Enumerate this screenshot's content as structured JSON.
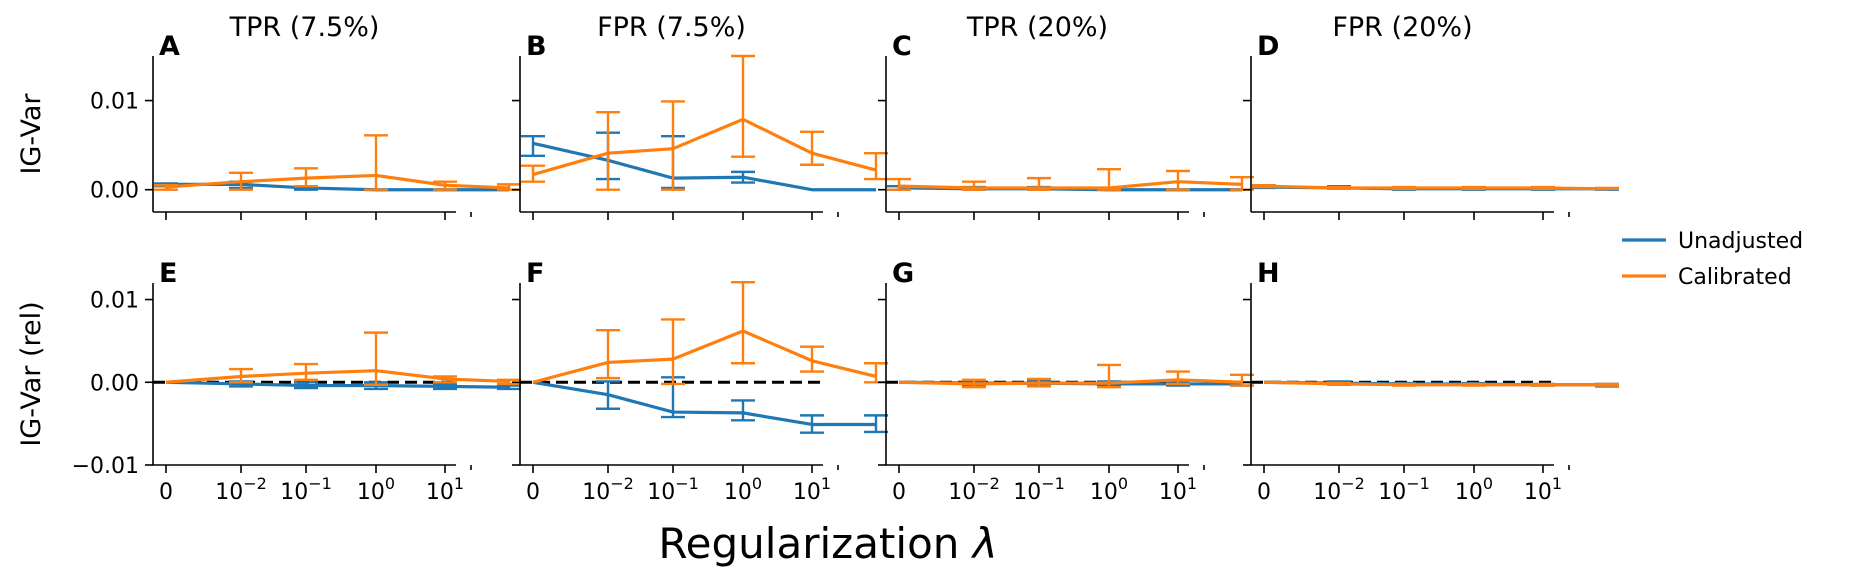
{
  "figure": {
    "xlabel": "Regularization λ",
    "legend": {
      "placement": "right",
      "entries": [
        {
          "name": "Unadjusted",
          "color": "#1f77b4"
        },
        {
          "name": "Calibrated",
          "color": "#ff7f0e"
        }
      ]
    },
    "x_ticks": [
      "0",
      "10^-2",
      "10^-1",
      "10^0",
      "10^1"
    ]
  },
  "chart_data": [
    {
      "type": "line",
      "letter": "A",
      "title": "TPR (7.5%)",
      "ylabel": "IG-Var",
      "ylim": [
        -0.0025,
        0.015
      ],
      "yticks": [
        "0.00",
        "0.01"
      ],
      "ytick_values": [
        0.0,
        0.01
      ],
      "zero_line": false,
      "x": [
        0,
        1,
        2,
        3,
        4,
        5
      ],
      "series": [
        {
          "name": "Unadjusted",
          "values": [
            0.0006,
            0.0006,
            0.0002,
            0.0,
            0.0,
            0.0
          ],
          "err_low": [
            0.0004,
            0.0002,
            0.0,
            0.0,
            0.0,
            0.0
          ],
          "err_high": [
            0.0007,
            0.0009,
            0.0004,
            0.0,
            0.0,
            0.0
          ]
        },
        {
          "name": "Calibrated",
          "values": [
            0.0003,
            0.0009,
            0.0013,
            0.0016,
            0.0005,
            0.0002
          ],
          "err_low": [
            0.0,
            0.0,
            0.0004,
            0.0,
            0.0,
            0.0
          ],
          "err_high": [
            0.0005,
            0.0019,
            0.0024,
            0.0061,
            0.0009,
            0.0006
          ]
        }
      ]
    },
    {
      "type": "line",
      "letter": "B",
      "title": "FPR (7.5%)",
      "ylabel": "",
      "ylim": [
        -0.0025,
        0.015
      ],
      "yticks": [
        "",
        ""
      ],
      "ytick_values": [
        0.0,
        0.01
      ],
      "zero_line": false,
      "x": [
        0,
        1,
        2,
        3,
        4,
        5
      ],
      "series": [
        {
          "name": "Unadjusted",
          "values": [
            0.0052,
            0.0033,
            0.0013,
            0.0014,
            0.0,
            0.0
          ],
          "err_low": [
            0.0038,
            0.0012,
            0.0002,
            0.0008,
            0.0,
            0.0
          ],
          "err_high": [
            0.006,
            0.0064,
            0.006,
            0.002,
            0.0,
            0.0
          ]
        },
        {
          "name": "Calibrated",
          "values": [
            0.0017,
            0.0041,
            0.0046,
            0.0079,
            0.0041,
            0.0022
          ],
          "err_low": [
            0.0009,
            0.0,
            0.0,
            0.0037,
            0.0028,
            0.0012
          ],
          "err_high": [
            0.0027,
            0.0087,
            0.0099,
            0.015,
            0.0065,
            0.0041
          ]
        }
      ]
    },
    {
      "type": "line",
      "letter": "C",
      "title": "TPR (20%)",
      "ylabel": "",
      "ylim": [
        -0.0025,
        0.015
      ],
      "yticks": [
        "",
        ""
      ],
      "ytick_values": [
        0.0,
        0.01
      ],
      "zero_line": false,
      "x": [
        0,
        1,
        2,
        3,
        4,
        5
      ],
      "series": [
        {
          "name": "Unadjusted",
          "values": [
            0.0002,
            0.0001,
            0.0001,
            0.0,
            0.0,
            0.0
          ],
          "err_low": [
            0.0,
            0.0,
            0.0,
            0.0,
            0.0,
            0.0
          ],
          "err_high": [
            0.0004,
            0.0003,
            0.0003,
            0.0,
            0.0,
            0.0
          ]
        },
        {
          "name": "Calibrated",
          "values": [
            0.0004,
            0.0002,
            0.0002,
            0.0002,
            0.0009,
            0.0006
          ],
          "err_low": [
            0.0,
            0.0,
            0.0,
            0.0,
            0.0,
            0.0
          ],
          "err_high": [
            0.0012,
            0.0009,
            0.0013,
            0.0023,
            0.0021,
            0.0014
          ]
        }
      ]
    },
    {
      "type": "line",
      "letter": "D",
      "title": "FPR (20%)",
      "ylabel": "",
      "ylim": [
        -0.0025,
        0.015
      ],
      "yticks": [
        "",
        ""
      ],
      "ytick_values": [
        0.0,
        0.01
      ],
      "zero_line": false,
      "x": [
        0,
        1,
        2,
        3,
        4,
        5
      ],
      "series": [
        {
          "name": "Unadjusted",
          "values": [
            0.0003,
            0.0002,
            0.0001,
            0.0001,
            0.0001,
            0.0001
          ],
          "err_low": [
            0.0002,
            0.0001,
            0.0,
            0.0,
            0.0,
            0.0
          ],
          "err_high": [
            0.0004,
            0.0004,
            0.0002,
            0.0001,
            0.0002,
            0.0001
          ]
        },
        {
          "name": "Calibrated",
          "values": [
            0.0004,
            0.0002,
            0.0002,
            0.0002,
            0.0002,
            0.0001
          ],
          "err_low": [
            0.0003,
            0.0001,
            0.0001,
            0.0001,
            0.0001,
            0.0001
          ],
          "err_high": [
            0.0005,
            0.0003,
            0.0003,
            0.0003,
            0.0003,
            0.0002
          ]
        }
      ]
    },
    {
      "type": "line",
      "letter": "E",
      "title": "",
      "ylabel": "IG-Var (rel)",
      "ylim": [
        -0.01,
        0.012
      ],
      "yticks": [
        "−0.01",
        "0.00",
        "0.01"
      ],
      "ytick_values": [
        -0.01,
        0.0,
        0.01
      ],
      "zero_line": true,
      "x": [
        0,
        1,
        2,
        3,
        4,
        5
      ],
      "series": [
        {
          "name": "Unadjusted",
          "values": [
            0.0,
            -0.0002,
            -0.0004,
            -0.0004,
            -0.0005,
            -0.0006
          ],
          "err_low": [
            0.0,
            -0.0005,
            -0.0007,
            -0.0008,
            -0.0008,
            -0.0008
          ],
          "err_high": [
            0.0,
            0.0001,
            0.0,
            0.0,
            -0.0002,
            -0.0004
          ]
        },
        {
          "name": "Calibrated",
          "values": [
            0.0,
            0.0007,
            0.0011,
            0.0014,
            0.0004,
            0.0001
          ],
          "err_low": [
            0.0,
            0.0,
            0.0003,
            -0.0003,
            0.0,
            -0.0002
          ],
          "err_high": [
            0.0,
            0.0016,
            0.0022,
            0.006,
            0.0007,
            0.0003
          ]
        }
      ]
    },
    {
      "type": "line",
      "letter": "F",
      "title": "",
      "ylabel": "",
      "ylim": [
        -0.01,
        0.012
      ],
      "yticks": [
        "",
        "",
        ""
      ],
      "ytick_values": [
        -0.01,
        0.0,
        0.01
      ],
      "zero_line": true,
      "x": [
        0,
        1,
        2,
        3,
        4,
        5
      ],
      "series": [
        {
          "name": "Unadjusted",
          "values": [
            0.0,
            -0.0015,
            -0.0036,
            -0.0037,
            -0.0051,
            -0.0051
          ],
          "err_low": [
            0.0,
            -0.0032,
            -0.0042,
            -0.0046,
            -0.0061,
            -0.006
          ],
          "err_high": [
            0.0,
            0.0001,
            0.0006,
            -0.0022,
            -0.004,
            -0.004
          ]
        },
        {
          "name": "Calibrated",
          "values": [
            0.0,
            0.0024,
            0.0028,
            0.0062,
            0.0026,
            0.0007
          ],
          "err_low": [
            0.0,
            0.0005,
            -0.0002,
            0.0023,
            0.0013,
            0.0
          ],
          "err_high": [
            0.0,
            0.0063,
            0.0076,
            0.0121,
            0.0043,
            0.0023
          ]
        }
      ]
    },
    {
      "type": "line",
      "letter": "G",
      "title": "",
      "ylabel": "",
      "ylim": [
        -0.01,
        0.012
      ],
      "yticks": [
        "",
        "",
        ""
      ],
      "ytick_values": [
        -0.01,
        0.0,
        0.01
      ],
      "zero_line": true,
      "x": [
        0,
        1,
        2,
        3,
        4,
        5
      ],
      "series": [
        {
          "name": "Unadjusted",
          "values": [
            0.0,
            -0.0001,
            -0.0001,
            -0.0002,
            -0.0002,
            -0.0002
          ],
          "err_low": [
            0.0,
            -0.0003,
            -0.0003,
            -0.0004,
            -0.0004,
            -0.0004
          ],
          "err_high": [
            0.0,
            0.0002,
            0.0002,
            0.0001,
            0.0,
            0.0
          ]
        },
        {
          "name": "Calibrated",
          "values": [
            0.0,
            -0.0002,
            -0.0001,
            -0.0001,
            0.0003,
            0.0
          ],
          "err_low": [
            0.0,
            -0.0006,
            -0.0005,
            -0.0006,
            -0.0002,
            -0.0004
          ],
          "err_high": [
            0.0,
            0.0003,
            0.0004,
            0.0021,
            0.0013,
            0.0009
          ]
        }
      ]
    },
    {
      "type": "line",
      "letter": "H",
      "title": "",
      "ylabel": "",
      "ylim": [
        -0.01,
        0.012
      ],
      "yticks": [
        "",
        "",
        ""
      ],
      "ytick_values": [
        -0.01,
        0.0,
        0.01
      ],
      "zero_line": true,
      "x": [
        0,
        1,
        2,
        3,
        4,
        5
      ],
      "series": [
        {
          "name": "Unadjusted",
          "values": [
            0.0,
            -0.0001,
            -0.0002,
            -0.0002,
            -0.0003,
            -0.0003
          ],
          "err_low": [
            0.0,
            -0.0002,
            -0.0003,
            -0.0003,
            -0.0004,
            -0.0005
          ],
          "err_high": [
            0.0,
            0.0001,
            -0.0001,
            -0.0001,
            -0.0002,
            -0.0002
          ]
        },
        {
          "name": "Calibrated",
          "values": [
            0.0,
            -0.0002,
            -0.0003,
            -0.0003,
            -0.0003,
            -0.0003
          ],
          "err_low": [
            0.0,
            -0.0003,
            -0.0004,
            -0.0004,
            -0.0004,
            -0.0004
          ],
          "err_high": [
            0.0,
            -0.0001,
            -0.0002,
            -0.0002,
            -0.0002,
            -0.0002
          ]
        }
      ]
    }
  ]
}
